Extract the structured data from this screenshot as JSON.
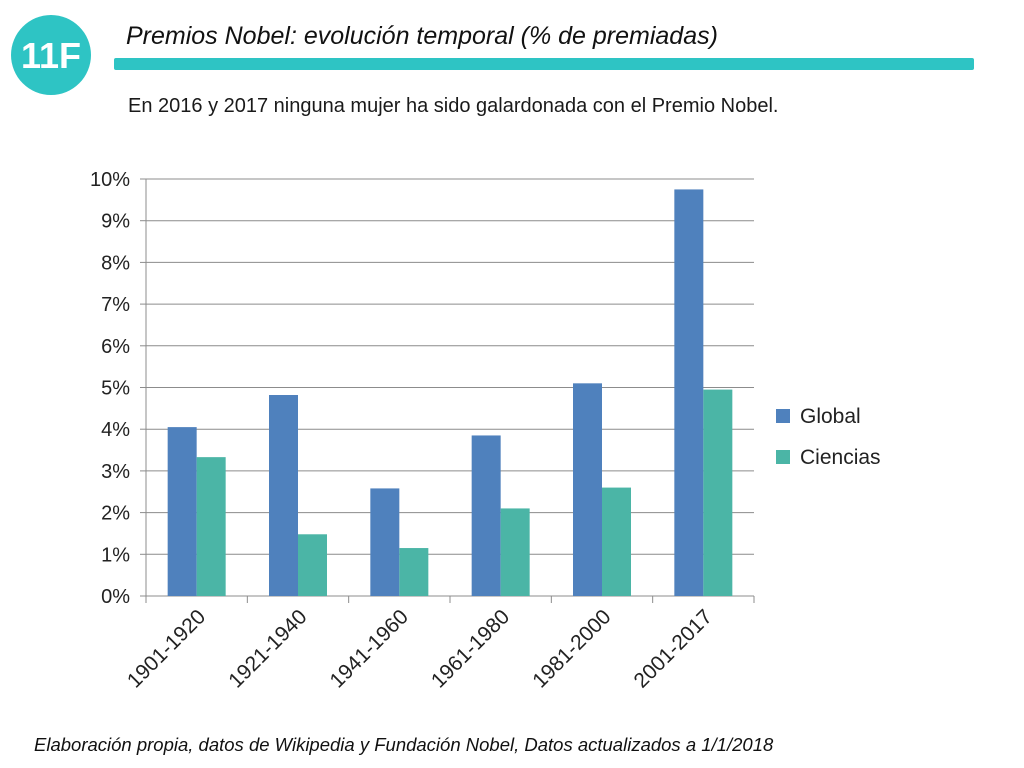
{
  "header": {
    "title": "Premios Nobel: evolución temporal (% de premiadas)",
    "subtitle": "En 2016 y 2017 ninguna mujer ha sido galardonada con el Premio Nobel.",
    "logo_text": "11F",
    "logo_color": "#2ec4c4",
    "rule_color": "#2ec4c4"
  },
  "footnote": "Elaboración propia, datos de Wikipedia y Fundación Nobel, Datos actualizados a 1/1/2018",
  "chart_data": {
    "type": "bar",
    "categories": [
      "1901-1920",
      "1921-1940",
      "1941-1960",
      "1961-1980",
      "1981-2000",
      "2001-2017"
    ],
    "series": [
      {
        "name": "Global",
        "color": "#4f81bd",
        "values": [
          4.05,
          4.82,
          2.58,
          3.85,
          5.1,
          9.75
        ]
      },
      {
        "name": "Ciencias",
        "color": "#4bb5a6",
        "values": [
          3.33,
          1.48,
          1.15,
          2.1,
          2.6,
          4.95
        ]
      }
    ],
    "ylim": [
      0,
      10
    ],
    "yticks": [
      "0%",
      "1%",
      "2%",
      "3%",
      "4%",
      "5%",
      "6%",
      "7%",
      "8%",
      "9%",
      "10%"
    ],
    "xlabel": "",
    "ylabel": "",
    "grid": true,
    "legend": "right"
  }
}
